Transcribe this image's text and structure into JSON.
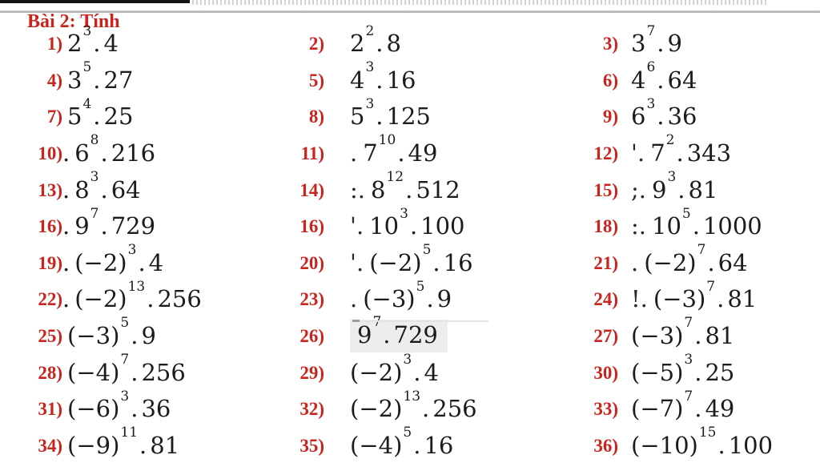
{
  "title": "Bài 2: Tính",
  "colors": {
    "accent_red": "#c9241d",
    "text": "#1c1c1c",
    "highlight": "#ededed",
    "rule_gray": "#b0b0b0"
  },
  "problems": [
    {
      "n": "1)",
      "suffix": "",
      "frag": "",
      "base": "2",
      "exp": "3",
      "fac": "4",
      "hl": false
    },
    {
      "n": "2)",
      "suffix": "",
      "frag": "",
      "base": "2",
      "exp": "2",
      "fac": "8",
      "hl": false
    },
    {
      "n": "3)",
      "suffix": "",
      "frag": "",
      "base": "3",
      "exp": "7",
      "fac": "9",
      "hl": false
    },
    {
      "n": "4)",
      "suffix": "",
      "frag": "",
      "base": "3",
      "exp": "5",
      "fac": "27",
      "hl": false
    },
    {
      "n": "5)",
      "suffix": "",
      "frag": "",
      "base": "4",
      "exp": "3",
      "fac": "16",
      "hl": false
    },
    {
      "n": "6)",
      "suffix": "",
      "frag": "",
      "base": "4",
      "exp": "6",
      "fac": "64",
      "hl": false
    },
    {
      "n": "7)",
      "suffix": "",
      "frag": "",
      "base": "5",
      "exp": "4",
      "fac": "25",
      "hl": false
    },
    {
      "n": "8)",
      "suffix": "",
      "frag": "",
      "base": "5",
      "exp": "3",
      "fac": "125",
      "hl": false
    },
    {
      "n": "9)",
      "suffix": "",
      "frag": "",
      "base": "6",
      "exp": "3",
      "fac": "36",
      "hl": false
    },
    {
      "n": "10)",
      "suffix": ".",
      "frag": "",
      "base": "6",
      "exp": "8",
      "fac": "216",
      "hl": false
    },
    {
      "n": "11)",
      "suffix": "",
      "frag": ".",
      "base": "7",
      "exp": "10",
      "fac": "49",
      "hl": false
    },
    {
      "n": "12)",
      "suffix": "",
      "frag": "'.",
      "base": "7",
      "exp": "2",
      "fac": "343",
      "hl": false
    },
    {
      "n": "13)",
      "suffix": ".",
      "frag": "",
      "base": "8",
      "exp": "3",
      "fac": "64",
      "hl": false
    },
    {
      "n": "14)",
      "suffix": "",
      "frag": ":.",
      "base": "8",
      "exp": "12",
      "fac": "512",
      "hl": false
    },
    {
      "n": "15)",
      "suffix": "",
      "frag": ";.",
      "base": "9",
      "exp": "3",
      "fac": "81",
      "hl": false
    },
    {
      "n": "16)",
      "suffix": ".",
      "frag": "",
      "base": "9",
      "exp": "7",
      "fac": "729",
      "hl": false
    },
    {
      "n": "16)",
      "suffix": "",
      "frag": "'.",
      "base": "10",
      "exp": "3",
      "fac": "100",
      "hl": false
    },
    {
      "n": "18)",
      "suffix": "",
      "frag": ":.",
      "base": "10",
      "exp": "5",
      "fac": "1000",
      "hl": false
    },
    {
      "n": "19)",
      "suffix": ".",
      "frag": "",
      "base": "(−2)",
      "exp": "3",
      "fac": "4",
      "hl": false
    },
    {
      "n": "20)",
      "suffix": "",
      "frag": "'.",
      "base": "(−2)",
      "exp": "5",
      "fac": "16",
      "hl": false
    },
    {
      "n": "21)",
      "suffix": "",
      "frag": ".",
      "base": "(−2)",
      "exp": "7",
      "fac": "64",
      "hl": false
    },
    {
      "n": "22)",
      "suffix": ".",
      "frag": "",
      "base": "(−2)",
      "exp": "13",
      "fac": "256",
      "hl": false
    },
    {
      "n": "23)",
      "suffix": "",
      "frag": ".",
      "base": "(−3)",
      "exp": "5",
      "fac": "9",
      "hl": false
    },
    {
      "n": "24)",
      "suffix": "",
      "frag": "!.",
      "base": "(−3)",
      "exp": "7",
      "fac": "81",
      "hl": false
    },
    {
      "n": "25)",
      "suffix": "",
      "frag": "",
      "base": "(−3)",
      "exp": "5",
      "fac": "9",
      "hl": false
    },
    {
      "n": "26)",
      "suffix": "",
      "frag": "",
      "base": "9",
      "exp": "7",
      "fac": "729",
      "hl": true
    },
    {
      "n": "27)",
      "suffix": "",
      "frag": "",
      "base": "(−3)",
      "exp": "7",
      "fac": "81",
      "hl": false
    },
    {
      "n": "28)",
      "suffix": "",
      "frag": "",
      "base": "(−4)",
      "exp": "7",
      "fac": "256",
      "hl": false
    },
    {
      "n": "29)",
      "suffix": "",
      "frag": "",
      "base": "(−2)",
      "exp": "3",
      "fac": "4",
      "hl": false
    },
    {
      "n": "30)",
      "suffix": "",
      "frag": "",
      "base": "(−5)",
      "exp": "3",
      "fac": "25",
      "hl": false
    },
    {
      "n": "31)",
      "suffix": "",
      "frag": "",
      "base": "(−6)",
      "exp": "3",
      "fac": "36",
      "hl": false
    },
    {
      "n": "32)",
      "suffix": "",
      "frag": "",
      "base": "(−2)",
      "exp": "13",
      "fac": "256",
      "hl": false
    },
    {
      "n": "33)",
      "suffix": "",
      "frag": "",
      "base": "(−7)",
      "exp": "7",
      "fac": "49",
      "hl": false
    },
    {
      "n": "34)",
      "suffix": "",
      "frag": "",
      "base": "(−9)",
      "exp": "11",
      "fac": "81",
      "hl": false
    },
    {
      "n": "35)",
      "suffix": "",
      "frag": "",
      "base": "(−4)",
      "exp": "5",
      "fac": "16",
      "hl": false
    },
    {
      "n": "36)",
      "suffix": "",
      "frag": "",
      "base": "(−10)",
      "exp": "15",
      "fac": "100",
      "hl": false
    }
  ]
}
